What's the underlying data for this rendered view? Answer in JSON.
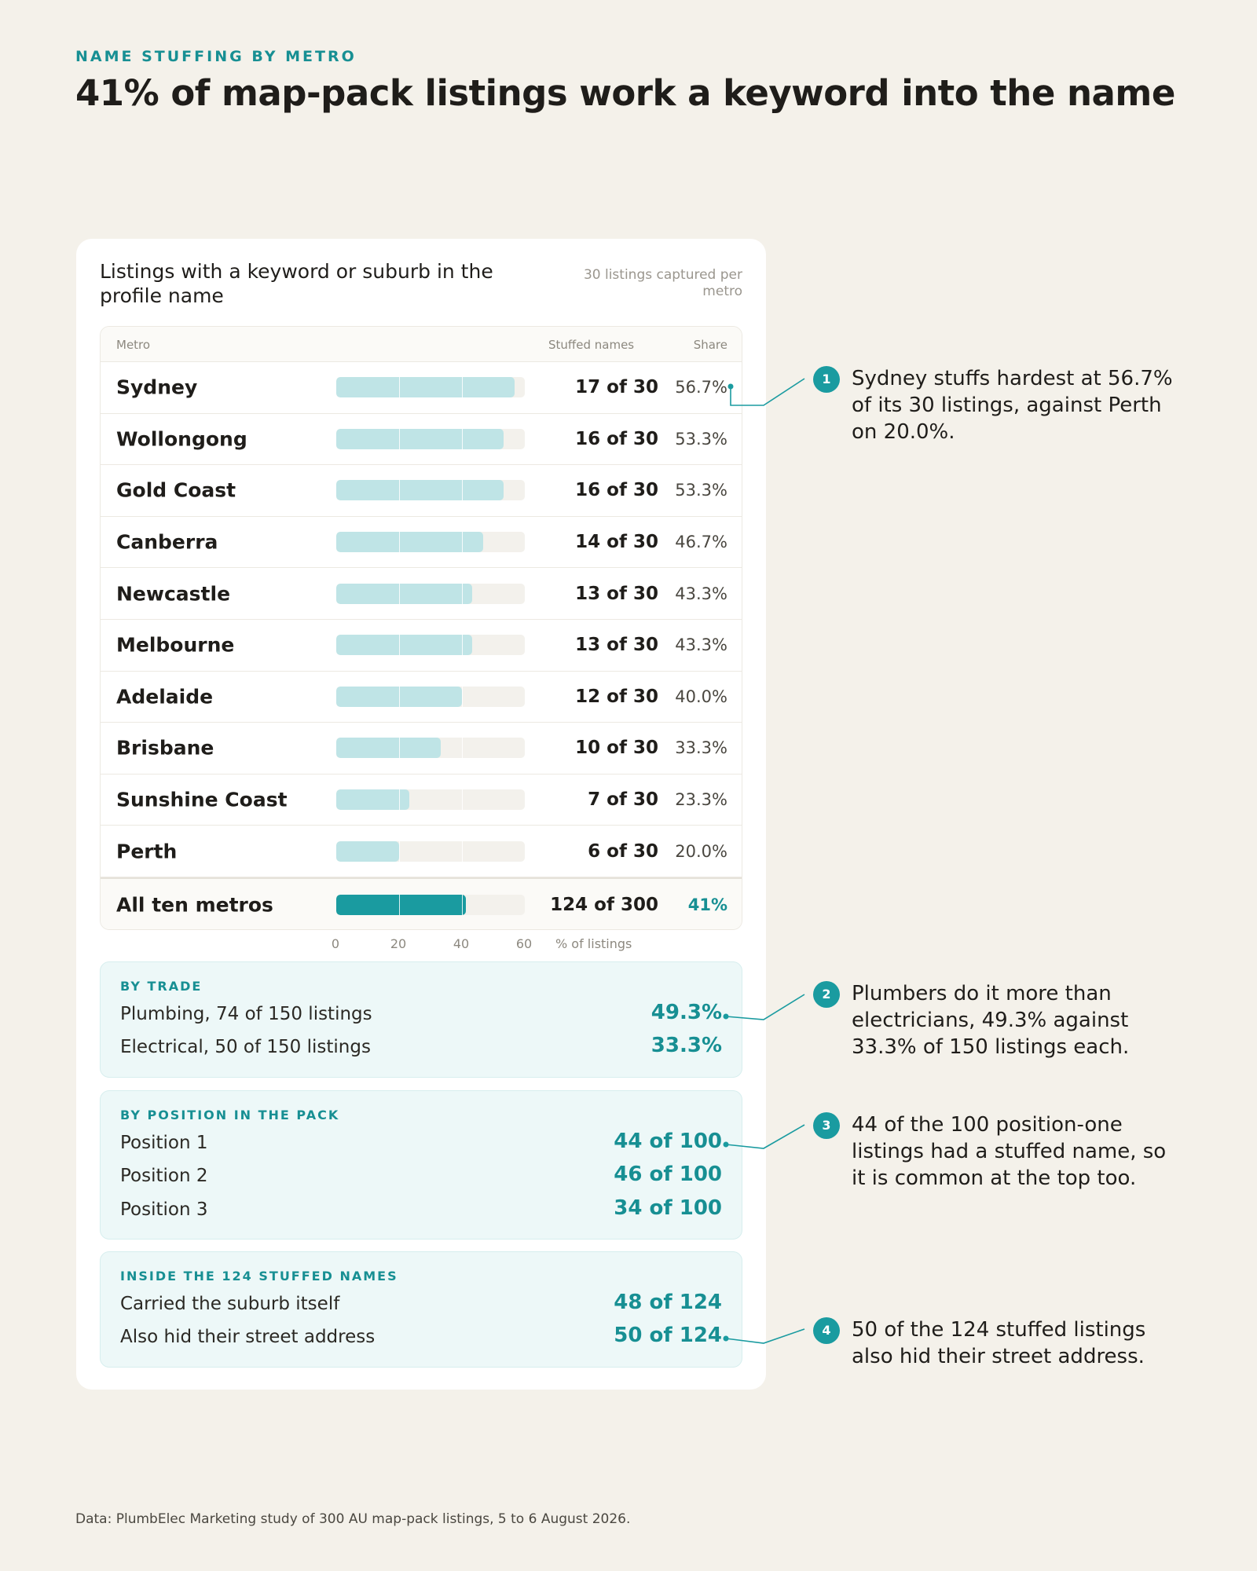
{
  "eyebrow": "NAME STUFFING BY METRO",
  "headline": "41% of map-pack listings work a keyword into the name",
  "card": {
    "title": "Listings with a keyword or suburb in the profile name",
    "note": "30 listings captured per metro"
  },
  "colors": {
    "accent": "#1a9ba0",
    "bar": "#bfe4e6",
    "bar_total": "#1a9ba0",
    "track": "#f3f1ec"
  },
  "chart_data": {
    "type": "bar",
    "orientation": "horizontal",
    "columns": {
      "metro": "Metro",
      "stuffed": "Stuffed names",
      "share": "Share"
    },
    "categories": [
      "Sydney",
      "Wollongong",
      "Gold Coast",
      "Canberra",
      "Newcastle",
      "Melbourne",
      "Adelaide",
      "Brisbane",
      "Sunshine Coast",
      "Perth"
    ],
    "rows": [
      {
        "metro": "Sydney",
        "count_label": "17 of 30",
        "share_label": "56.7%",
        "value": 56.7
      },
      {
        "metro": "Wollongong",
        "count_label": "16 of 30",
        "share_label": "53.3%",
        "value": 53.3
      },
      {
        "metro": "Gold Coast",
        "count_label": "16 of 30",
        "share_label": "53.3%",
        "value": 53.3
      },
      {
        "metro": "Canberra",
        "count_label": "14 of 30",
        "share_label": "46.7%",
        "value": 46.7
      },
      {
        "metro": "Newcastle",
        "count_label": "13 of 30",
        "share_label": "43.3%",
        "value": 43.3
      },
      {
        "metro": "Melbourne",
        "count_label": "13 of 30",
        "share_label": "43.3%",
        "value": 43.3
      },
      {
        "metro": "Adelaide",
        "count_label": "12 of 30",
        "share_label": "40.0%",
        "value": 40.0
      },
      {
        "metro": "Brisbane",
        "count_label": "10 of 30",
        "share_label": "33.3%",
        "value": 33.3
      },
      {
        "metro": "Sunshine Coast",
        "count_label": "7 of 30",
        "share_label": "23.3%",
        "value": 23.3
      },
      {
        "metro": "Perth",
        "count_label": "6 of 30",
        "share_label": "20.0%",
        "value": 20.0
      }
    ],
    "total": {
      "metro": "All ten metros",
      "count_label": "124 of 300",
      "share_label": "41%",
      "value": 41.3
    },
    "xlim": [
      0,
      60
    ],
    "xticks": [
      0,
      20,
      40,
      60
    ],
    "xlabel": "% of listings",
    "grid": true
  },
  "panels": [
    {
      "title": "BY TRADE",
      "rows": [
        {
          "label": "Plumbing, 74 of 150 listings",
          "value": "49.3%"
        },
        {
          "label": "Electrical, 50 of 150 listings",
          "value": "33.3%"
        }
      ]
    },
    {
      "title": "BY POSITION IN THE PACK",
      "rows": [
        {
          "label": "Position 1",
          "value": "44 of 100"
        },
        {
          "label": "Position 2",
          "value": "46 of 100"
        },
        {
          "label": "Position 3",
          "value": "34 of 100"
        }
      ]
    },
    {
      "title": "INSIDE THE 124 STUFFED NAMES",
      "rows": [
        {
          "label": "Carried the suburb itself",
          "value": "48 of 124"
        },
        {
          "label": "Also hid their street address",
          "value": "50 of 124"
        }
      ]
    }
  ],
  "callouts": [
    {
      "number": "1",
      "text": "Sydney stuffs hardest at 56.7% of its 30 listings, against Perth on 20.0%."
    },
    {
      "number": "2",
      "text": "Plumbers do it more than electricians, 49.3% against 33.3% of 150 listings each."
    },
    {
      "number": "3",
      "text": "44 of the 100 position-one listings had a stuffed name, so it is common at the top too."
    },
    {
      "number": "4",
      "text": "50 of the 124 stuffed listings also hid their street address."
    }
  ],
  "source": "Data: PlumbElec Marketing study of 300 AU map-pack listings, 5 to 6 August 2026."
}
